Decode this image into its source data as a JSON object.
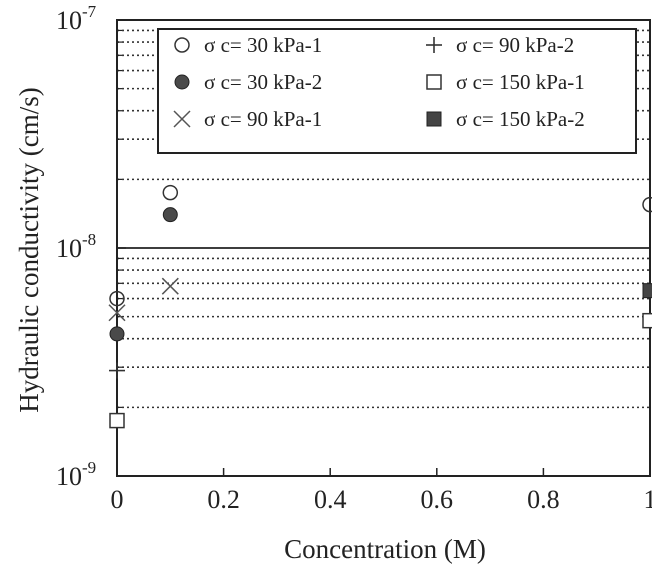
{
  "chart_data": {
    "type": "scatter",
    "title": "",
    "xlabel": "Concentration (M)",
    "ylabel": "Hydraulic conductivity (cm/s)",
    "xlim": [
      0,
      1
    ],
    "ylim": [
      1e-09,
      1e-07
    ],
    "yscale": "log",
    "x_ticks": [
      {
        "value": 0,
        "label": "0"
      },
      {
        "value": 0.2,
        "label": "0.2"
      },
      {
        "value": 0.4,
        "label": "0.4"
      },
      {
        "value": 0.6,
        "label": "0.6"
      },
      {
        "value": 0.8,
        "label": "0.8"
      },
      {
        "value": 1,
        "label": "1"
      }
    ],
    "y_ticks": [
      {
        "value": 1e-09,
        "mantissa": "10",
        "exponent": "-9"
      },
      {
        "value": 1e-08,
        "mantissa": "10",
        "exponent": "-8"
      },
      {
        "value": 1e-07,
        "mantissa": "10",
        "exponent": "-7"
      }
    ],
    "grid": "horizontal dotted at minor decades, solid at 10^-8",
    "legend_position": "top-right",
    "series": [
      {
        "name": "σ c= 30 kPa-1",
        "marker": "open-circle",
        "points": [
          [
            0,
            6e-09
          ],
          [
            0.1,
            1.75e-08
          ],
          [
            1,
            1.55e-08
          ]
        ]
      },
      {
        "name": "σ c= 30 kPa-2",
        "marker": "filled-circle",
        "points": [
          [
            0,
            4.2e-09
          ],
          [
            0.1,
            1.4e-08
          ]
        ]
      },
      {
        "name": "σ c= 90 kPa-1",
        "marker": "x",
        "points": [
          [
            0,
            5.2e-09
          ],
          [
            0.1,
            6.8e-09
          ]
        ]
      },
      {
        "name": "σ c= 90 kPa-2",
        "marker": "plus",
        "points": [
          [
            0,
            2.9e-09
          ]
        ]
      },
      {
        "name": "σ c= 150 kPa-1",
        "marker": "open-square",
        "points": [
          [
            0,
            1.75e-09
          ],
          [
            1,
            4.8e-09
          ]
        ]
      },
      {
        "name": "σ c= 150 kPa-2",
        "marker": "filled-square",
        "points": [
          [
            1,
            6.5e-09
          ]
        ]
      }
    ]
  }
}
